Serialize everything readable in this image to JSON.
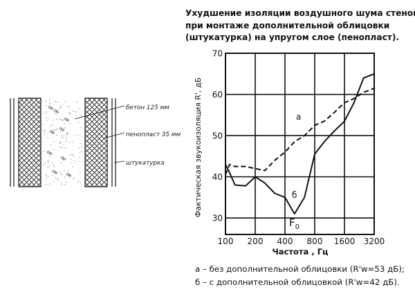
{
  "title_lines": [
    "Ухудшение изоляции воздушного шума стеной",
    "при монтаже дополнительной облицовки",
    "(штукатурка) на упругом слое (пенопласт)."
  ],
  "wall_diagram": {
    "labels": [
      "бетон 125 мм",
      "пенопласт 35 мм",
      "штукатурка"
    ]
  },
  "chart_data": {
    "type": "line",
    "title": "",
    "xlabel": "Частота , Гц",
    "ylabel": "Фактическая звукоизоляция R', дБ",
    "x_scale": "log2",
    "x_ticks": [
      100,
      200,
      400,
      800,
      1600,
      3200
    ],
    "x_tick_labels": [
      "100",
      "200",
      "400",
      "800",
      "1600",
      "3200"
    ],
    "ylim": [
      26,
      70
    ],
    "y_ticks": [
      30,
      40,
      50,
      60,
      70
    ],
    "grid": true,
    "series": [
      {
        "name": "а",
        "style": "dashed",
        "x": [
          100,
          110,
          125,
          160,
          200,
          250,
          315,
          400,
          500,
          630,
          800,
          1000,
          1250,
          1600,
          2000,
          2500,
          3200
        ],
        "y": [
          40.5,
          43,
          42.5,
          42.5,
          42,
          41.5,
          44,
          46,
          48.5,
          50,
          52.5,
          53.5,
          55.5,
          58,
          59,
          60.5,
          61.5
        ]
      },
      {
        "name": "б",
        "style": "solid",
        "x": [
          100,
          110,
          125,
          160,
          200,
          250,
          315,
          400,
          500,
          630,
          800,
          1000,
          1250,
          1600,
          2000,
          2500,
          3200
        ],
        "y": [
          43,
          41,
          38,
          37.8,
          40,
          38.5,
          36,
          35,
          31,
          35,
          45.5,
          48.5,
          51,
          53.5,
          58,
          64,
          65
        ]
      }
    ],
    "annotations": [
      "а",
      "б",
      "F0"
    ]
  },
  "notes": [
    "а – без дополнительной облицовки (R'w=53 дБ);",
    "б – с дополнительной облицовкой (R'w=42 дБ)."
  ]
}
